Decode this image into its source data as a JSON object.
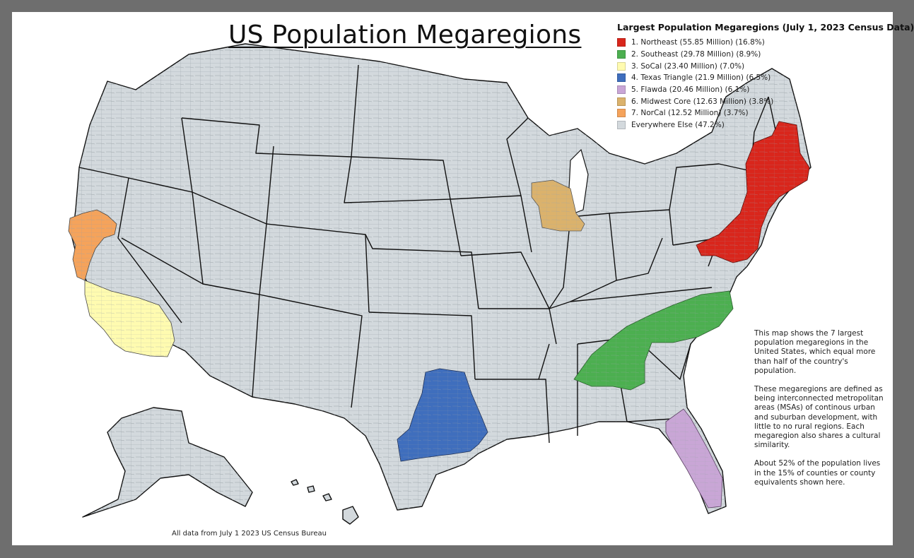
{
  "title": "US Population Megaregions",
  "legend": {
    "title": "Largest Population Megaregions (July 1, 2023 Census Data)",
    "items": [
      {
        "label": "1. Northeast (55.85 Million) (16.8%)",
        "color": "#d9261c"
      },
      {
        "label": "2.  Southeast (29.78 Million) (8.9%)",
        "color": "#4caf50"
      },
      {
        "label": "3.  SoCal (23.40 Million) (7.0%)",
        "color": "#fffbb0"
      },
      {
        "label": "4. Texas Triangle (21.9 Million) (6.5%)",
        "color": "#3f6ebd"
      },
      {
        "label": "5. Flawda (20.46 Million) (6.1%)",
        "color": "#c9a6d6"
      },
      {
        "label": "6. Midwest Core (12.63 Million) (3.8%)",
        "color": "#dbb26c"
      },
      {
        "label": "7. NorCal (12.52 Million) (3.7%)",
        "color": "#f5a35b"
      },
      {
        "label": "Everywhere Else (47.2%)",
        "color": "#d3d9dd"
      }
    ]
  },
  "notes": {
    "p1": "This map shows the 7 largest population megaregions in the United States, which equal more than half of the country's population.",
    "p2": "These megaregions are defined as being interconnected metropolitan areas (MSAs) of continous urban and suburban development, with little to no rural regions. Each megaregion also shares a cultural similarity.",
    "p3": "About 52% of the population lives in the 15% of counties or county equivalents shown here."
  },
  "footer": "All data from July 1 2023 US Census Bureau",
  "colors": {
    "background": "#6e6e6e",
    "map_fill": "#d3d9dd",
    "state_border": "#111111",
    "county_border": "#9aa2a8"
  }
}
